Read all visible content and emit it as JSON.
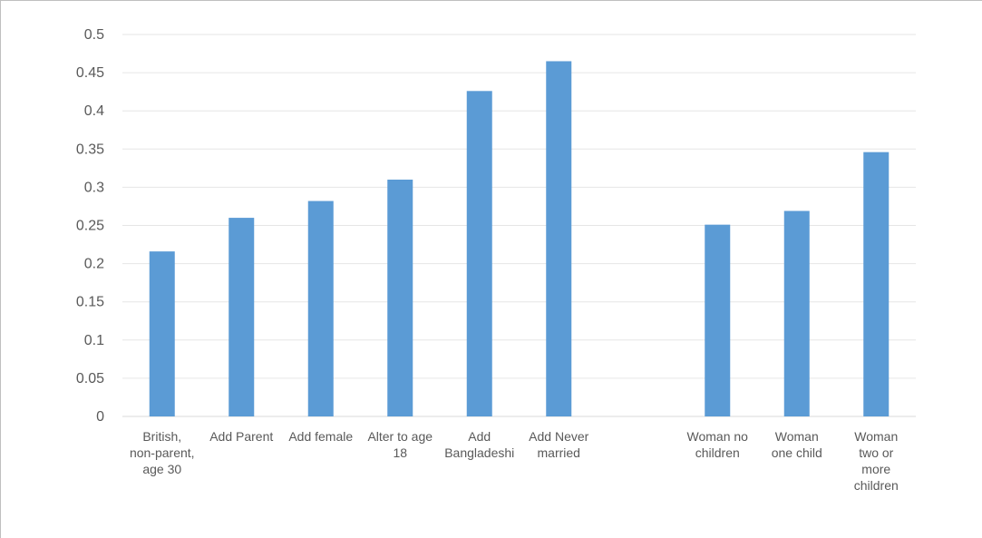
{
  "chart_data": {
    "type": "bar",
    "title": "",
    "xlabel": "",
    "ylabel": "",
    "ylim": [
      0,
      0.5
    ],
    "yticks": [
      "0",
      "0.05",
      "0.1",
      "0.15",
      "0.2",
      "0.25",
      "0.3",
      "0.35",
      "0.4",
      "0.45",
      "0.5"
    ],
    "grid": true,
    "legend": "none",
    "bar_color": "#5b9bd5",
    "categories": [
      [
        "British,",
        "non-parent,",
        "age 30"
      ],
      [
        "Add Parent"
      ],
      [
        "Add female"
      ],
      [
        "Alter to age",
        "18"
      ],
      [
        "Add",
        "Bangladeshi"
      ],
      [
        "Add Never",
        "married"
      ],
      [],
      [
        "Woman no",
        "children"
      ],
      [
        "Woman",
        "one child"
      ],
      [
        "Woman",
        "two or",
        "more",
        "children"
      ]
    ],
    "values": [
      0.216,
      0.26,
      0.282,
      0.31,
      0.426,
      0.465,
      null,
      0.251,
      0.269,
      0.346
    ]
  }
}
